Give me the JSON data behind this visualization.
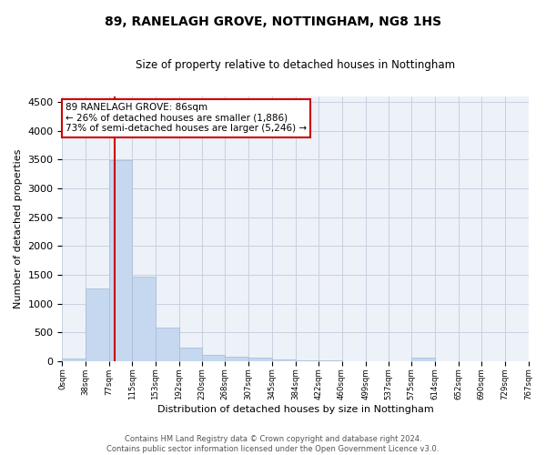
{
  "title": "89, RANELAGH GROVE, NOTTINGHAM, NG8 1HS",
  "subtitle": "Size of property relative to detached houses in Nottingham",
  "xlabel": "Distribution of detached houses by size in Nottingham",
  "ylabel": "Number of detached properties",
  "bin_edges": [
    0,
    38,
    77,
    115,
    153,
    192,
    230,
    268,
    307,
    345,
    384,
    422,
    460,
    499,
    537,
    575,
    614,
    652,
    690,
    729,
    767
  ],
  "bar_heights": [
    50,
    1260,
    3490,
    1460,
    580,
    240,
    115,
    85,
    55,
    30,
    20,
    10,
    5,
    0,
    0,
    60,
    0,
    0,
    0,
    0
  ],
  "bar_color": "#c5d8f0",
  "bar_edgecolor": "#aabfd8",
  "grid_color": "#c8d0e0",
  "vline_x": 86,
  "vline_color": "#cc0000",
  "annotation_text": "89 RANELAGH GROVE: 86sqm\n← 26% of detached houses are smaller (1,886)\n73% of semi-detached houses are larger (5,246) →",
  "annotation_box_color": "#cc0000",
  "ylim": [
    0,
    4600
  ],
  "yticks": [
    0,
    500,
    1000,
    1500,
    2000,
    2500,
    3000,
    3500,
    4000,
    4500
  ],
  "footer_line1": "Contains HM Land Registry data © Crown copyright and database right 2024.",
  "footer_line2": "Contains public sector information licensed under the Open Government Licence v3.0.",
  "background_color": "#ffffff",
  "plot_bg_color": "#edf1f8"
}
